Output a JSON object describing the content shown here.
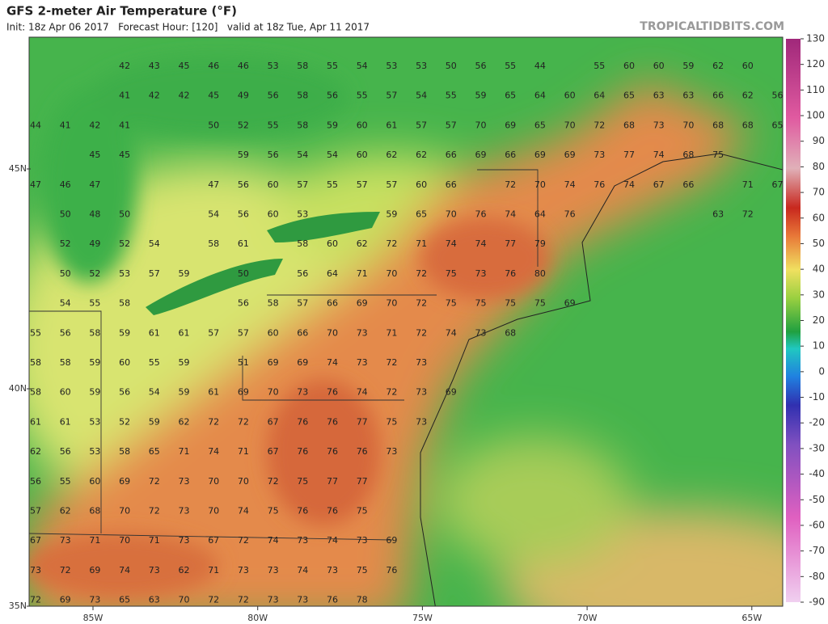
{
  "header": {
    "title": "GFS 2-meter Air Temperature (°F)",
    "subtitle": "Init: 18z Apr 06 2017   Forecast Hour: [120]   valid at 18z Tue, Apr 11 2017",
    "credit": "TROPICALTIDBITS.COM"
  },
  "map": {
    "lat_labels": [
      "45N",
      "40N",
      "35N"
    ],
    "lon_labels": [
      "85W",
      "80W",
      "75W",
      "70W",
      "65W"
    ],
    "stations": [
      [
        null,
        null,
        null,
        42,
        43,
        45,
        46,
        46,
        53,
        58,
        55,
        54,
        53,
        53,
        50,
        56,
        55,
        44,
        null,
        55,
        60,
        60,
        59,
        62,
        60
      ],
      [
        null,
        null,
        null,
        41,
        42,
        42,
        45,
        49,
        56,
        58,
        56,
        55,
        57,
        54,
        55,
        59,
        65,
        64,
        60,
        64,
        65,
        63,
        63,
        66,
        62,
        56
      ],
      [
        44,
        41,
        42,
        41,
        null,
        null,
        50,
        52,
        55,
        58,
        59,
        60,
        61,
        57,
        57,
        70,
        69,
        65,
        70,
        72,
        68,
        73,
        70,
        68,
        68,
        65
      ],
      [
        null,
        null,
        45,
        45,
        null,
        null,
        null,
        59,
        56,
        54,
        54,
        60,
        62,
        62,
        66,
        69,
        66,
        69,
        69,
        73,
        77,
        74,
        68,
        75
      ],
      [
        47,
        46,
        47,
        null,
        null,
        null,
        47,
        56,
        60,
        57,
        55,
        57,
        57,
        60,
        66,
        null,
        72,
        70,
        74,
        76,
        74,
        67,
        66,
        null,
        71,
        67
      ],
      [
        null,
        50,
        48,
        50,
        null,
        null,
        54,
        56,
        60,
        53,
        null,
        null,
        59,
        65,
        70,
        76,
        74,
        64,
        76,
        null,
        null,
        null,
        null,
        63,
        72
      ],
      [
        null,
        52,
        49,
        52,
        54,
        null,
        58,
        61,
        null,
        58,
        60,
        62,
        72,
        71,
        74,
        74,
        77,
        79
      ],
      [
        null,
        50,
        52,
        53,
        57,
        59,
        null,
        50,
        null,
        56,
        64,
        71,
        70,
        72,
        75,
        73,
        76,
        80
      ],
      [
        null,
        54,
        55,
        58,
        null,
        null,
        null,
        56,
        58,
        57,
        66,
        69,
        70,
        72,
        75,
        75,
        75,
        75,
        69
      ],
      [
        55,
        56,
        58,
        59,
        61,
        61,
        57,
        57,
        60,
        66,
        70,
        73,
        71,
        72,
        74,
        73,
        68
      ],
      [
        58,
        58,
        59,
        60,
        55,
        59,
        null,
        51,
        69,
        69,
        74,
        73,
        72,
        73
      ],
      [
        58,
        60,
        59,
        56,
        54,
        59,
        61,
        69,
        70,
        73,
        76,
        74,
        72,
        73,
        69
      ],
      [
        61,
        61,
        53,
        52,
        59,
        62,
        72,
        72,
        67,
        76,
        76,
        77,
        75,
        73
      ],
      [
        62,
        56,
        53,
        58,
        65,
        71,
        74,
        71,
        67,
        76,
        76,
        76,
        73
      ],
      [
        56,
        55,
        60,
        69,
        72,
        73,
        70,
        70,
        72,
        75,
        77,
        77
      ],
      [
        57,
        62,
        68,
        70,
        72,
        73,
        70,
        74,
        75,
        76,
        76,
        75
      ],
      [
        67,
        73,
        71,
        70,
        71,
        73,
        67,
        72,
        74,
        73,
        74,
        73,
        69
      ],
      [
        73,
        72,
        69,
        74,
        73,
        62,
        71,
        73,
        73,
        74,
        73,
        75,
        76
      ],
      [
        72,
        69,
        73,
        65,
        63,
        70,
        72,
        72,
        73,
        73,
        76,
        78
      ]
    ]
  },
  "colorbar": {
    "ticks": [
      130,
      120,
      110,
      100,
      90,
      80,
      70,
      60,
      50,
      40,
      30,
      20,
      10,
      0,
      -10,
      -20,
      -30,
      -40,
      -50,
      -60,
      -70,
      -80,
      -90
    ]
  }
}
